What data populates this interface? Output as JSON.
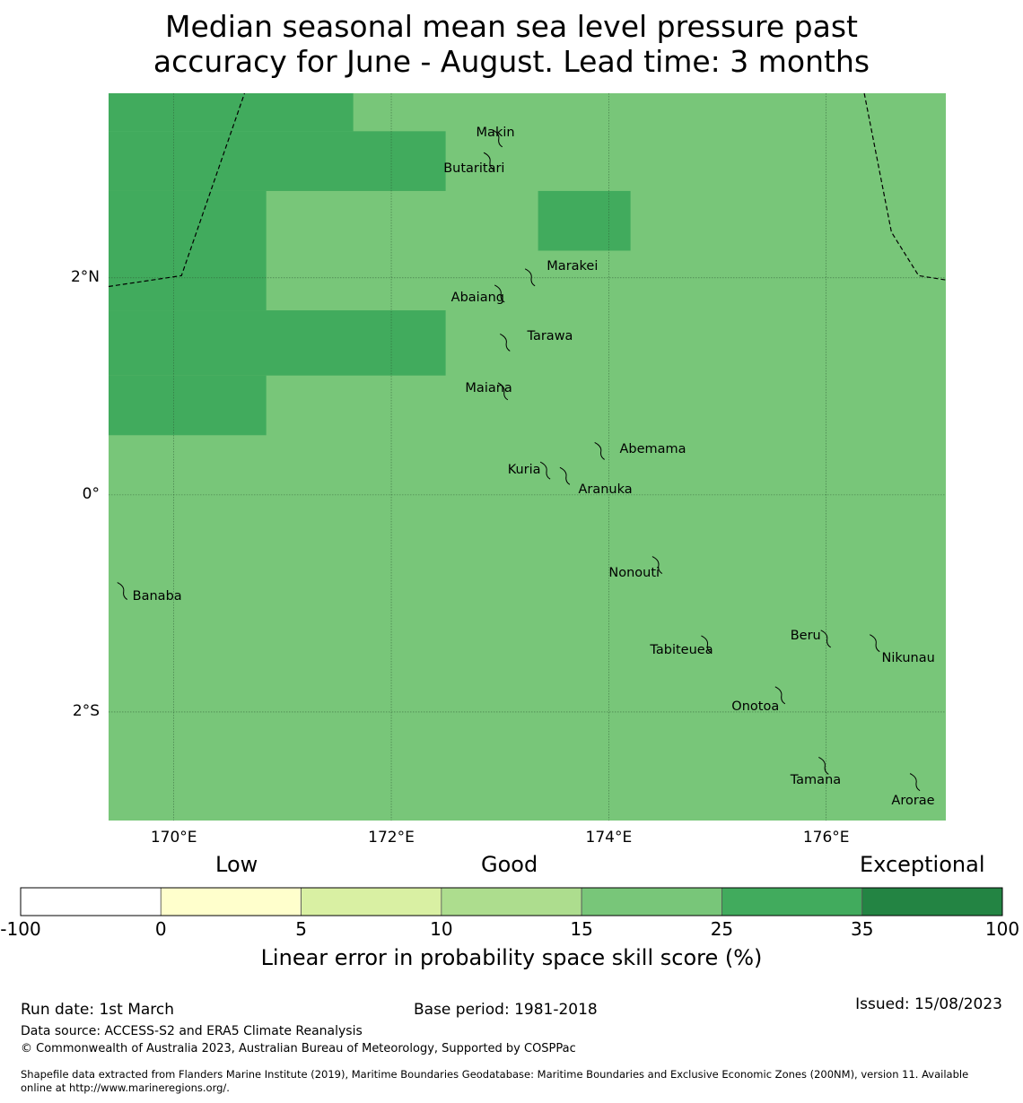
{
  "title": {
    "line1": "Median seasonal mean sea level pressure past",
    "line2": "accuracy for June - August. Lead time: 3 months"
  },
  "map": {
    "lon_range": [
      169.4,
      177.1
    ],
    "lat_range": [
      -3.0,
      3.7
    ],
    "background_class_color": "#78c679",
    "high_class_color": "#41ab5d",
    "high_skill_cells": [
      {
        "lon": [
          169.4,
          171.65
        ],
        "lat": [
          3.35,
          3.7
        ]
      },
      {
        "lon": [
          169.4,
          172.5
        ],
        "lat": [
          2.8,
          3.35
        ]
      },
      {
        "lon": [
          169.4,
          170.85
        ],
        "lat": [
          1.7,
          2.8
        ]
      },
      {
        "lon": [
          169.4,
          172.5
        ],
        "lat": [
          1.1,
          1.7
        ]
      },
      {
        "lon": [
          169.4,
          170.85
        ],
        "lat": [
          0.55,
          1.1
        ]
      },
      {
        "lon": [
          173.35,
          174.2
        ],
        "lat": [
          2.25,
          2.8
        ]
      }
    ],
    "eez_west": [
      [
        169.4,
        1.92
      ],
      [
        170.07,
        2.02
      ],
      [
        170.65,
        3.7
      ]
    ],
    "eez_east": [
      [
        176.35,
        3.7
      ],
      [
        176.6,
        2.42
      ],
      [
        176.85,
        2.02
      ],
      [
        177.1,
        1.98
      ]
    ],
    "lat_ticks": [
      {
        "value": 2,
        "label": "2°N"
      },
      {
        "value": 0,
        "label": "0°"
      },
      {
        "value": -2,
        "label": "2°S"
      }
    ],
    "lon_ticks": [
      {
        "value": 170,
        "label": "170°E"
      },
      {
        "value": 172,
        "label": "172°E"
      },
      {
        "value": 174,
        "label": "174°E"
      },
      {
        "value": 176,
        "label": "176°E"
      }
    ],
    "islands": [
      {
        "name": "Makin",
        "lon": 172.98,
        "lat": 3.28,
        "label_lon": 172.78,
        "label_lat": 3.33
      },
      {
        "name": "Butaritari",
        "lon": 172.9,
        "lat": 3.07,
        "label_lon": 172.48,
        "label_lat": 3.0
      },
      {
        "name": "Marakei",
        "lon": 173.28,
        "lat": 2.0,
        "label_lon": 173.43,
        "label_lat": 2.1
      },
      {
        "name": "Abaiang",
        "lon": 173.0,
        "lat": 1.85,
        "label_lon": 172.55,
        "label_lat": 1.81
      },
      {
        "name": "Tarawa",
        "lon": 173.05,
        "lat": 1.4,
        "label_lon": 173.25,
        "label_lat": 1.45
      },
      {
        "name": "Maiana",
        "lon": 173.03,
        "lat": 0.95,
        "label_lon": 172.68,
        "label_lat": 0.97
      },
      {
        "name": "Abemama",
        "lon": 173.92,
        "lat": 0.4,
        "label_lon": 174.1,
        "label_lat": 0.41
      },
      {
        "name": "Kuria",
        "lon": 173.42,
        "lat": 0.22,
        "label_lon": 173.07,
        "label_lat": 0.22
      },
      {
        "name": "Aranuka",
        "lon": 173.6,
        "lat": 0.17,
        "label_lon": 173.72,
        "label_lat": 0.04
      },
      {
        "name": "Nonouti",
        "lon": 174.45,
        "lat": -0.65,
        "label_lon": 174.0,
        "label_lat": -0.73
      },
      {
        "name": "Banaba",
        "lon": 169.53,
        "lat": -0.89,
        "label_lon": 169.62,
        "label_lat": -0.94
      },
      {
        "name": "Tabiteuea",
        "lon": 174.9,
        "lat": -1.38,
        "label_lon": 174.38,
        "label_lat": -1.44
      },
      {
        "name": "Beru",
        "lon": 176.0,
        "lat": -1.33,
        "label_lon": 175.67,
        "label_lat": -1.31
      },
      {
        "name": "Nikunau",
        "lon": 176.45,
        "lat": -1.37,
        "label_lon": 176.51,
        "label_lat": -1.51
      },
      {
        "name": "Onotoa",
        "lon": 175.58,
        "lat": -1.85,
        "label_lon": 175.13,
        "label_lat": -1.96
      },
      {
        "name": "Tamana",
        "lon": 175.98,
        "lat": -2.5,
        "label_lon": 175.67,
        "label_lat": -2.64
      },
      {
        "name": "Arorae",
        "lon": 176.82,
        "lat": -2.65,
        "label_lon": 176.6,
        "label_lat": -2.83
      }
    ]
  },
  "colorbar": {
    "categories": {
      "low": "Low",
      "good": "Good",
      "exceptional": "Exceptional"
    },
    "bins": [
      {
        "from": -100,
        "to": 0,
        "color": "#ffffff"
      },
      {
        "from": 0,
        "to": 5,
        "color": "#ffffcc"
      },
      {
        "from": 5,
        "to": 10,
        "color": "#d9f0a3"
      },
      {
        "from": 10,
        "to": 15,
        "color": "#addd8e"
      },
      {
        "from": 15,
        "to": 25,
        "color": "#78c679"
      },
      {
        "from": 25,
        "to": 35,
        "color": "#41ab5d"
      },
      {
        "from": 35,
        "to": 100,
        "color": "#238443"
      }
    ],
    "tick_labels": [
      "-100",
      "0",
      "5",
      "10",
      "15",
      "25",
      "35",
      "100"
    ],
    "label": "Linear error in probability space skill score (%)"
  },
  "footer": {
    "run_date": "Run date: 1st March",
    "base_period": "Base period: 1981-2018",
    "issued": "Issued: 15/08/2023",
    "data_source": "Data source: ACCESS-S2 and ERA5 Climate Reanalysis",
    "copyright": "© Commonwealth of Australia 2023, Australian Bureau of Meteorology, Supported by COSPPac",
    "shapefile_line1": "Shapefile data extracted from Flanders Marine Institute (2019), Maritime Boundaries Geodatabase: Maritime Boundaries and Exclusive Economic Zones (200NM), version 11. Available",
    "shapefile_line2": "online at http://www.marineregions.org/."
  }
}
